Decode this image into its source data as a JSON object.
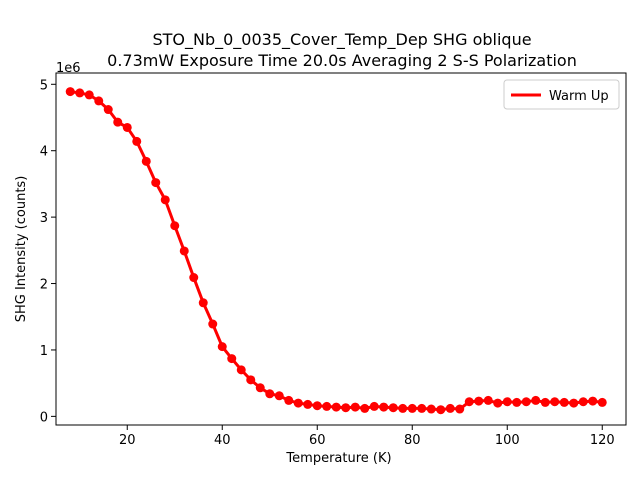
{
  "chart_data": {
    "type": "line",
    "title_line1": "STO_Nb_0_0035_Cover_Temp_Dep SHG oblique",
    "title_line2": "0.73mW Exposure Time 20.0s Averaging 2 S-S  Polarization",
    "xlabel": "Temperature (K)",
    "ylabel": "SHG Intensity (counts)",
    "y_offset_label": "1e6",
    "y_scale": 1000000,
    "xlim": [
      5,
      125
    ],
    "ylim": [
      -0.13,
      5.17
    ],
    "x_ticks": [
      20,
      40,
      60,
      80,
      100,
      120
    ],
    "y_ticks": [
      0,
      1,
      2,
      3,
      4,
      5
    ],
    "grid": false,
    "legend_position": "top-right",
    "series": [
      {
        "name": "Warm Up",
        "color": "#ff0000",
        "marker": "circle",
        "x": [
          8,
          10,
          12,
          14,
          16,
          18,
          20,
          22,
          24,
          26,
          28,
          30,
          32,
          34,
          36,
          38,
          40,
          42,
          44,
          46,
          48,
          50,
          52,
          54,
          56,
          58,
          60,
          62,
          64,
          66,
          68,
          70,
          72,
          74,
          76,
          78,
          80,
          82,
          84,
          86,
          88,
          90,
          92,
          94,
          96,
          98,
          100,
          102,
          104,
          106,
          108,
          110,
          112,
          114,
          116,
          118,
          120
        ],
        "y": [
          4.89,
          4.87,
          4.84,
          4.75,
          4.62,
          4.43,
          4.35,
          4.14,
          3.84,
          3.52,
          3.26,
          2.87,
          2.49,
          2.09,
          1.71,
          1.39,
          1.05,
          0.87,
          0.7,
          0.55,
          0.43,
          0.34,
          0.31,
          0.24,
          0.2,
          0.18,
          0.16,
          0.15,
          0.14,
          0.13,
          0.14,
          0.12,
          0.15,
          0.14,
          0.13,
          0.12,
          0.12,
          0.12,
          0.11,
          0.1,
          0.12,
          0.11,
          0.22,
          0.23,
          0.24,
          0.2,
          0.22,
          0.21,
          0.22,
          0.24,
          0.21,
          0.22,
          0.21,
          0.2,
          0.22,
          0.23,
          0.21
        ]
      }
    ]
  }
}
